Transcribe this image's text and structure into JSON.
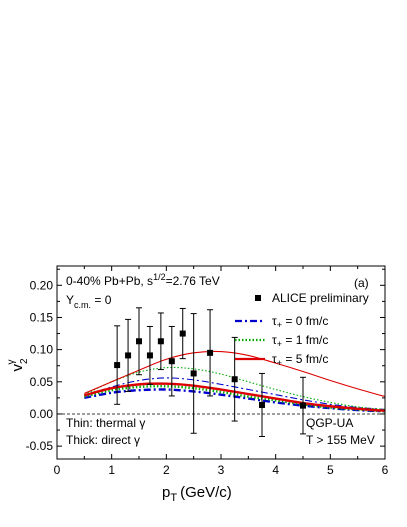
{
  "chart_data": {
    "type": "line",
    "xlabel": "p",
    "xlabel_sub": "T",
    "xlabel_unit": "(GeV/c)",
    "ylabel": "v",
    "ylabel_sub": "2",
    "ylabel_sup": "γ",
    "xlim": [
      0,
      6
    ],
    "ylim": [
      -0.07,
      0.23
    ],
    "xticks": [
      0,
      1,
      2,
      3,
      4,
      5,
      6
    ],
    "yticks": [
      -0.05,
      0.0,
      0.05,
      0.1,
      0.15,
      0.2
    ],
    "ytick_labels": [
      "-0.05",
      "0.00",
      "0.05",
      "0.10",
      "0.15",
      "0.20"
    ],
    "zero_line": "dashed",
    "legend_placement": "top-right",
    "panel_label": "(a)",
    "annotations": {
      "collision": "0-40% Pb+Pb, s",
      "collision_sup": "1/2",
      "collision_rest": "=2.76 TeV",
      "rapidity": "Y",
      "rapidity_sub": "c.m.",
      "rapidity_rest": " = 0",
      "thin_note": "Thin: thermal γ",
      "thick_note": "Thick: direct γ",
      "model": "QGP-UA",
      "temp_cut": "T > 155 MeV"
    },
    "data_series": {
      "name": "ALICE preliminary",
      "marker": "square",
      "color": "#000000",
      "points": [
        {
          "x": 1.1,
          "y": 0.076,
          "yerr": 0.061
        },
        {
          "x": 1.3,
          "y": 0.091,
          "yerr": 0.056
        },
        {
          "x": 1.5,
          "y": 0.113,
          "yerr": 0.052
        },
        {
          "x": 1.7,
          "y": 0.091,
          "yerr": 0.045
        },
        {
          "x": 1.9,
          "y": 0.113,
          "yerr": 0.044
        },
        {
          "x": 2.1,
          "y": 0.082,
          "yerr": 0.054
        },
        {
          "x": 2.3,
          "y": 0.125,
          "yerr": 0.039
        },
        {
          "x": 2.5,
          "y": 0.063,
          "yerr": 0.093
        },
        {
          "x": 2.8,
          "y": 0.095,
          "yerr": 0.067
        },
        {
          "x": 3.25,
          "y": 0.054,
          "yerr": 0.065
        },
        {
          "x": 3.75,
          "y": 0.014,
          "yerr": 0.049
        },
        {
          "x": 4.5,
          "y": 0.013,
          "yerr": 0.044
        }
      ]
    },
    "series": [
      {
        "name": "τ",
        "name_sub": "+",
        "name_rest": " = 0 fm/c",
        "color": "#0000cc",
        "dash": "dashdot",
        "width": "thick",
        "x": [
          0.5,
          1.0,
          1.5,
          2.0,
          2.5,
          3.0,
          3.5,
          4.0,
          4.5,
          5.0,
          5.5,
          6.0
        ],
        "y": [
          0.025,
          0.033,
          0.037,
          0.038,
          0.035,
          0.03,
          0.024,
          0.018,
          0.013,
          0.009,
          0.006,
          0.004
        ]
      },
      {
        "name": "",
        "color": "#0000cc",
        "dash": "dashdot",
        "width": "thin",
        "x": [
          0.5,
          1.0,
          1.5,
          2.0,
          2.5,
          3.0,
          3.5,
          4.0,
          4.5,
          5.0,
          5.5,
          6.0
        ],
        "y": [
          0.028,
          0.042,
          0.052,
          0.056,
          0.053,
          0.046,
          0.038,
          0.03,
          0.022,
          0.015,
          0.01,
          0.007
        ]
      },
      {
        "name": "τ",
        "name_sub": "+",
        "name_rest": " = 1 fm/c",
        "color": "#00aa00",
        "dash": "dotted",
        "width": "thick",
        "x": [
          0.5,
          1.0,
          1.5,
          2.0,
          2.5,
          3.0,
          3.5,
          4.0,
          4.5,
          5.0,
          5.5,
          6.0
        ],
        "y": [
          0.027,
          0.037,
          0.042,
          0.043,
          0.04,
          0.034,
          0.027,
          0.021,
          0.015,
          0.01,
          0.007,
          0.004
        ]
      },
      {
        "name": "",
        "color": "#00aa00",
        "dash": "dotted",
        "width": "thin",
        "x": [
          0.5,
          1.0,
          1.5,
          2.0,
          2.5,
          3.0,
          3.5,
          4.0,
          4.5,
          5.0,
          5.5,
          6.0
        ],
        "y": [
          0.03,
          0.05,
          0.065,
          0.072,
          0.07,
          0.062,
          0.05,
          0.038,
          0.027,
          0.018,
          0.011,
          0.007
        ]
      },
      {
        "name": "τ",
        "name_sub": "+",
        "name_rest": " = 5 fm/c",
        "color": "#dd0000",
        "dash": "solid",
        "width": "thick",
        "x": [
          0.5,
          1.0,
          1.5,
          2.0,
          2.5,
          3.0,
          3.5,
          4.0,
          4.5,
          5.0,
          5.5,
          6.0
        ],
        "y": [
          0.029,
          0.04,
          0.046,
          0.047,
          0.044,
          0.038,
          0.031,
          0.024,
          0.017,
          0.012,
          0.008,
          0.005
        ]
      },
      {
        "name": "",
        "color": "#dd0000",
        "dash": "solid",
        "width": "thin",
        "x": [
          0.5,
          1.0,
          1.5,
          2.0,
          2.5,
          3.0,
          3.5,
          4.0,
          4.5,
          5.0,
          5.5,
          6.0
        ],
        "y": [
          0.032,
          0.05,
          0.068,
          0.085,
          0.095,
          0.097,
          0.091,
          0.079,
          0.066,
          0.052,
          0.039,
          0.027
        ]
      }
    ]
  }
}
